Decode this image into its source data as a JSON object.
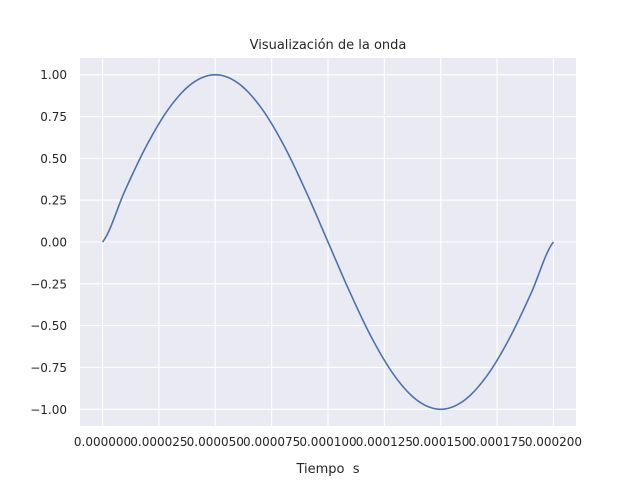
{
  "chart_data": {
    "type": "line",
    "title": "Visualización de la onda",
    "xlabel": "Tiempo  s",
    "ylabel": "",
    "xlim": [
      -1e-05,
      0.00021
    ],
    "ylim": [
      -1.1,
      1.1
    ],
    "grid": true,
    "x_ticks": [
      0.0,
      2.5e-05,
      5e-05,
      7.5e-05,
      0.0001,
      0.000125,
      0.00015,
      0.000175,
      0.0002
    ],
    "x_tick_labels": [
      "0.000000",
      "0.000025",
      "0.000050",
      "0.000075",
      "0.000100",
      "0.000125",
      "0.000150",
      "0.000175",
      "0.000200"
    ],
    "y_ticks": [
      1.0,
      0.75,
      0.5,
      0.25,
      0.0,
      -0.25,
      -0.5,
      -0.75,
      -1.0
    ],
    "y_tick_labels": [
      "1.00",
      "0.75",
      "0.50",
      "0.25",
      "0.00",
      "−0.25",
      "−0.50",
      "−0.75",
      "−1.00"
    ],
    "series": [
      {
        "color": "#4c72b0",
        "x": [
          0.0,
          1e-05,
          2e-05,
          3e-05,
          4e-05,
          5e-05,
          6e-05,
          7e-05,
          8e-05,
          9e-05,
          0.0001,
          0.00011,
          0.00012,
          0.00013,
          0.00014,
          0.00015,
          0.00016,
          0.00017,
          0.00018,
          0.00019,
          0.0002
        ],
        "y": [
          0.0,
          0.309,
          0.588,
          0.809,
          0.951,
          1.0,
          0.951,
          0.809,
          0.588,
          0.309,
          0.0,
          -0.309,
          -0.588,
          -0.809,
          -0.951,
          -1.0,
          -0.951,
          -0.809,
          -0.588,
          -0.309,
          0.0
        ]
      }
    ],
    "colors": {
      "plot_background": "#eaeaf2",
      "grid": "#ffffff",
      "text": "#262626"
    }
  }
}
